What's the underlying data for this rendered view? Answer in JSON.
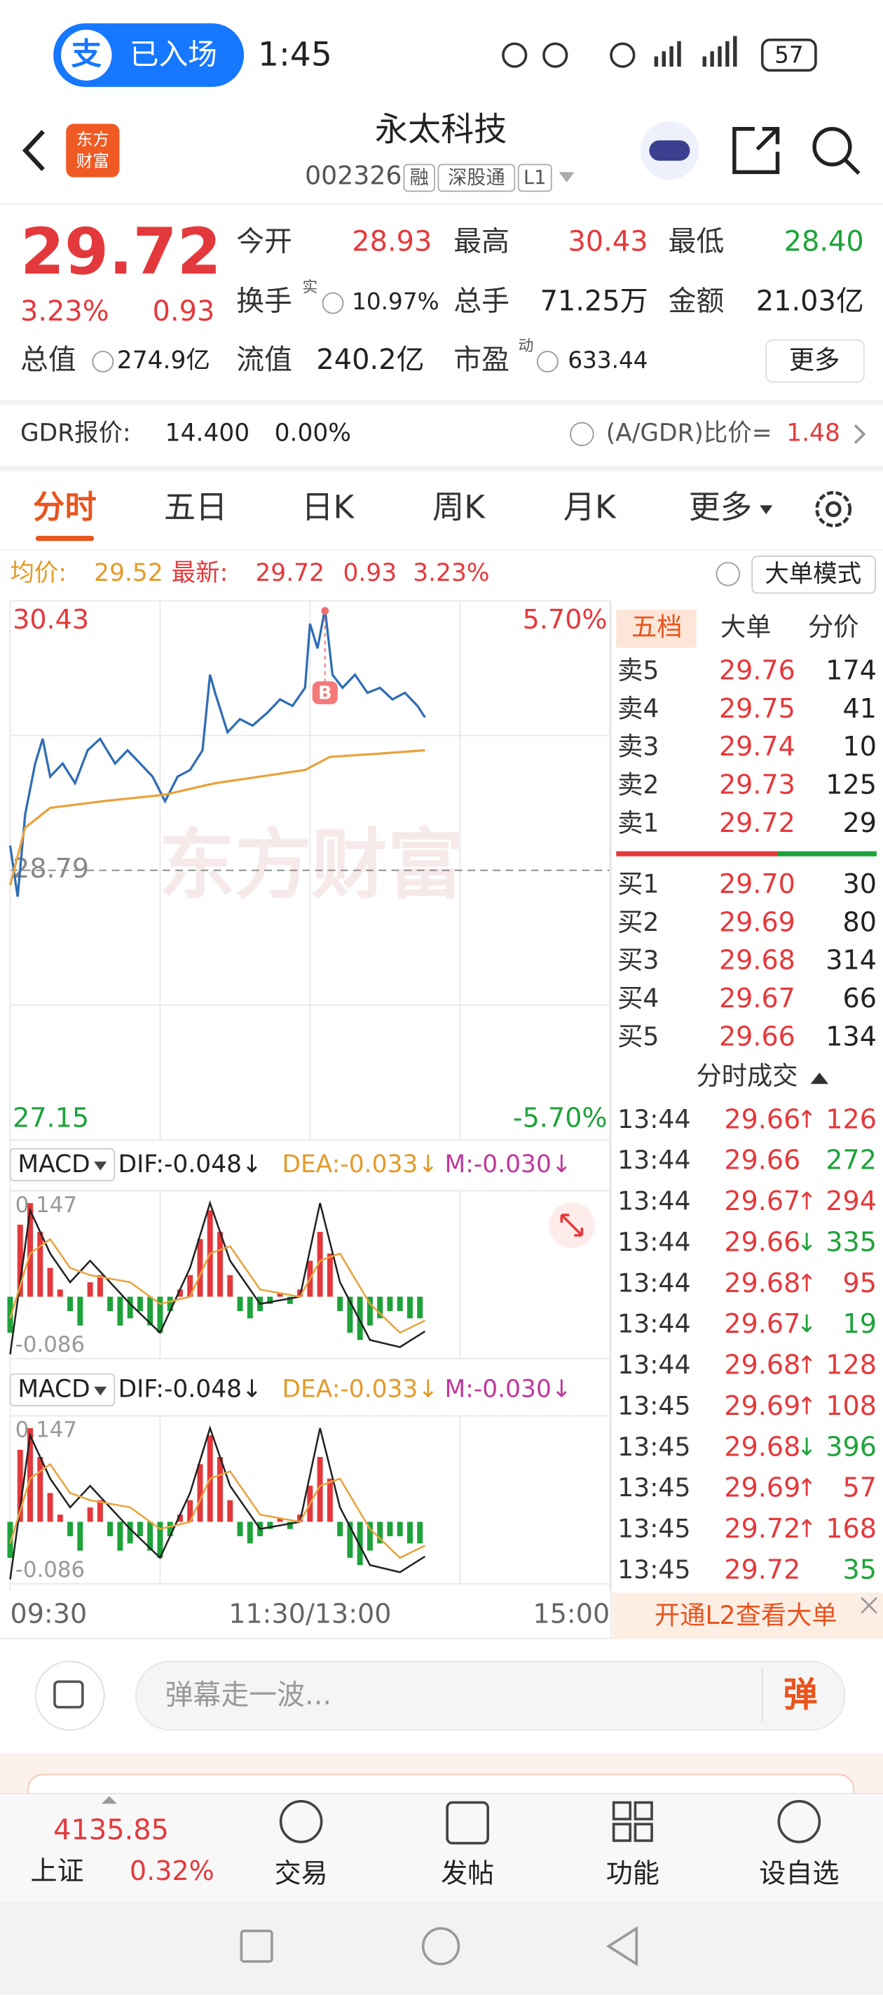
{
  "status_bar": {
    "badge_icon": "支",
    "badge": "已入场",
    "time": "1:45",
    "battery": "57"
  },
  "header": {
    "logo": [
      "东方",
      "财富"
    ],
    "title": "永太科技",
    "code": "002326",
    "tags": [
      "融",
      "深股通",
      "L1"
    ]
  },
  "quote": {
    "price": "29.72",
    "change_pct": "3.23%",
    "change": "0.93",
    "more": "更多",
    "fields": [
      {
        "label": "今开",
        "value": "28.93"
      },
      {
        "label": "最高",
        "value": "30.43"
      },
      {
        "label": "最低",
        "value": "28.40"
      },
      {
        "label": "换手",
        "sup": "实",
        "value": "10.97%"
      },
      {
        "label": "总手",
        "value": "71.25万"
      },
      {
        "label": "金额",
        "value": "21.03亿"
      },
      {
        "label": "总值",
        "value": "274.9亿"
      },
      {
        "label": "流值",
        "value": "240.2亿"
      },
      {
        "label": "市盈",
        "sup": "动",
        "value": "633.44"
      }
    ]
  },
  "gdr": {
    "label": "GDR报价:",
    "price": "14.400",
    "change": "0.00%",
    "ratio_label": "(A/GDR)比价=",
    "ratio": "1.48"
  },
  "tabs": [
    "分时",
    "五日",
    "日K",
    "周K",
    "月K",
    "更多"
  ],
  "info_bar": {
    "avg_label": "均价:",
    "avg": "29.52",
    "last_label": "最新:",
    "last": "29.72",
    "change": "0.93",
    "change_pct": "3.23%",
    "button": "大单模式"
  },
  "watermark": "东方财富",
  "order_book": {
    "tabs": [
      "五档",
      "大单",
      "分价"
    ],
    "asks": [
      {
        "label": "卖5",
        "price": "29.76",
        "volume": "174"
      },
      {
        "label": "卖4",
        "price": "29.75",
        "volume": "41"
      },
      {
        "label": "卖3",
        "price": "29.74",
        "volume": "10"
      },
      {
        "label": "卖2",
        "price": "29.73",
        "volume": "125"
      },
      {
        "label": "卖1",
        "price": "29.72",
        "volume": "29"
      }
    ],
    "bids": [
      {
        "label": "买1",
        "price": "29.70",
        "volume": "30"
      },
      {
        "label": "买2",
        "price": "29.69",
        "volume": "80"
      },
      {
        "label": "买3",
        "price": "29.68",
        "volume": "314"
      },
      {
        "label": "买4",
        "price": "29.67",
        "volume": "66"
      },
      {
        "label": "买5",
        "price": "29.66",
        "volume": "134"
      }
    ]
  },
  "trades": {
    "title": "分时成交",
    "rows": [
      {
        "time": "13:44",
        "price": "29.66",
        "dir": "↑",
        "volume": "126"
      },
      {
        "time": "13:44",
        "price": "29.66",
        "volume": "272"
      },
      {
        "time": "13:44",
        "price": "29.67",
        "dir": "↑",
        "volume": "294"
      },
      {
        "time": "13:44",
        "price": "29.66",
        "dir": "↓",
        "volume": "335"
      },
      {
        "time": "13:44",
        "price": "29.68",
        "dir": "↑",
        "volume": "95"
      },
      {
        "time": "13:44",
        "price": "29.67",
        "dir": "↓",
        "volume": "19"
      },
      {
        "time": "13:44",
        "price": "29.68",
        "dir": "↑",
        "volume": "128"
      },
      {
        "time": "13:45",
        "price": "29.69",
        "dir": "↑",
        "volume": "108"
      },
      {
        "time": "13:45",
        "price": "29.68",
        "dir": "↓",
        "volume": "396"
      },
      {
        "time": "13:45",
        "price": "29.69",
        "dir": "↑",
        "volume": "57"
      },
      {
        "time": "13:45",
        "price": "29.72",
        "dir": "↑",
        "volume": "168"
      },
      {
        "time": "13:45",
        "price": "29.72",
        "volume": "35"
      }
    ],
    "l2_banner": "开通L2查看大单"
  },
  "comment_bar": {
    "placeholder": "弹幕走一波...",
    "button": "弹"
  },
  "bottom_nav": {
    "index_value": "4135.85",
    "index_name": "上证",
    "index_change": "0.32%",
    "items": [
      "交易",
      "发帖",
      "功能",
      "设自选"
    ]
  },
  "chart_data": [
    {
      "type": "line",
      "ylim": [
        27.15,
        30.43
      ],
      "yticks": [
        30.43,
        28.79,
        27.15
      ],
      "y2lim": [
        -5.7,
        5.7
      ],
      "y2ticks": [
        {
          "value": 5.7,
          "label": "5.70%"
        },
        {
          "value": -5.7,
          "label": "-5.70%"
        }
      ],
      "xlim": [
        0,
        240
      ],
      "xticks": [
        {
          "value": 0,
          "label": "09:30"
        },
        {
          "value": 120,
          "label": "11:30/13:00"
        },
        {
          "value": 240,
          "label": "15:00"
        }
      ],
      "series": [
        {
          "color": "#2f6db5",
          "x": [
            0,
            3,
            6,
            10,
            13,
            16,
            21,
            26,
            31,
            36,
            42,
            47,
            52,
            57,
            62,
            67,
            72,
            77,
            80,
            82,
            87,
            92,
            97,
            103,
            108,
            113,
            118,
            120,
            123,
            126,
            129,
            133,
            138,
            143,
            148,
            153,
            158,
            163,
            166
          ],
          "values": [
            28.94,
            28.63,
            29.13,
            29.44,
            29.59,
            29.36,
            29.44,
            29.32,
            29.52,
            29.59,
            29.44,
            29.52,
            29.44,
            29.36,
            29.21,
            29.36,
            29.4,
            29.52,
            29.98,
            29.87,
            29.63,
            29.71,
            29.67,
            29.75,
            29.83,
            29.79,
            29.9,
            30.29,
            30.14,
            30.38,
            29.98,
            29.9,
            29.98,
            29.87,
            29.9,
            29.83,
            29.87,
            29.79,
            29.72
          ]
        },
        {
          "color": "#e8a33d",
          "x": [
            0,
            6,
            16,
            37,
            62,
            82,
            118,
            128,
            148,
            166
          ],
          "values": [
            28.7,
            29.05,
            29.17,
            29.21,
            29.25,
            29.32,
            29.4,
            29.48,
            29.5,
            29.52
          ]
        }
      ],
      "annotations": [
        {
          "text": "B",
          "x": 126,
          "y": 29.87
        }
      ]
    },
    {
      "type": "macd",
      "title": "MACD",
      "dif_label": "DIF:-0.048↓",
      "dea_label": "DEA:-0.033↓",
      "m_label": "M:-0.030↓",
      "ylim": [
        -0.086,
        0.147
      ],
      "yticks": [
        0.147,
        -0.086
      ],
      "xlim": [
        0,
        240
      ],
      "up_color": "#e4393c",
      "down_color": "#1ea33b",
      "x": [
        0,
        4,
        8,
        12,
        16,
        20,
        24,
        28,
        32,
        36,
        40,
        44,
        48,
        52,
        56,
        60,
        64,
        68,
        72,
        76,
        80,
        84,
        88,
        92,
        96,
        100,
        104,
        108,
        112,
        116,
        120,
        124,
        128,
        132,
        136,
        140,
        144,
        148,
        152,
        156,
        160,
        164
      ],
      "values": [
        -0.05,
        0.1,
        0.13,
        0.09,
        0.04,
        0.01,
        -0.02,
        -0.04,
        0.02,
        0.03,
        -0.02,
        -0.04,
        -0.03,
        -0.02,
        -0.04,
        -0.05,
        -0.02,
        0.01,
        0.03,
        0.08,
        0.12,
        0.09,
        0.03,
        -0.02,
        -0.03,
        -0.02,
        -0.01,
        0.005,
        -0.01,
        0.01,
        0.05,
        0.09,
        0.06,
        -0.02,
        -0.05,
        -0.06,
        -0.04,
        -0.03,
        -0.02,
        -0.02,
        -0.03,
        -0.03
      ],
      "series": [
        {
          "color": "#222222",
          "x": [
            0,
            8,
            16,
            24,
            32,
            48,
            60,
            72,
            80,
            88,
            100,
            116,
            124,
            132,
            144,
            156,
            166
          ],
          "values": [
            -0.08,
            0.12,
            0.06,
            0.02,
            0.05,
            -0.01,
            -0.05,
            0.04,
            0.13,
            0.05,
            -0.01,
            0,
            0.13,
            0.02,
            -0.06,
            -0.07,
            -0.048
          ]
        },
        {
          "color": "#e8a33d",
          "x": [
            0,
            8,
            16,
            24,
            32,
            48,
            60,
            72,
            80,
            88,
            100,
            116,
            124,
            132,
            144,
            156,
            166
          ],
          "values": [
            -0.03,
            0.06,
            0.08,
            0.04,
            0.03,
            0.02,
            -0.01,
            0,
            0.06,
            0.07,
            0.01,
            0,
            0.05,
            0.06,
            -0.01,
            -0.05,
            -0.033
          ]
        }
      ]
    }
  ]
}
